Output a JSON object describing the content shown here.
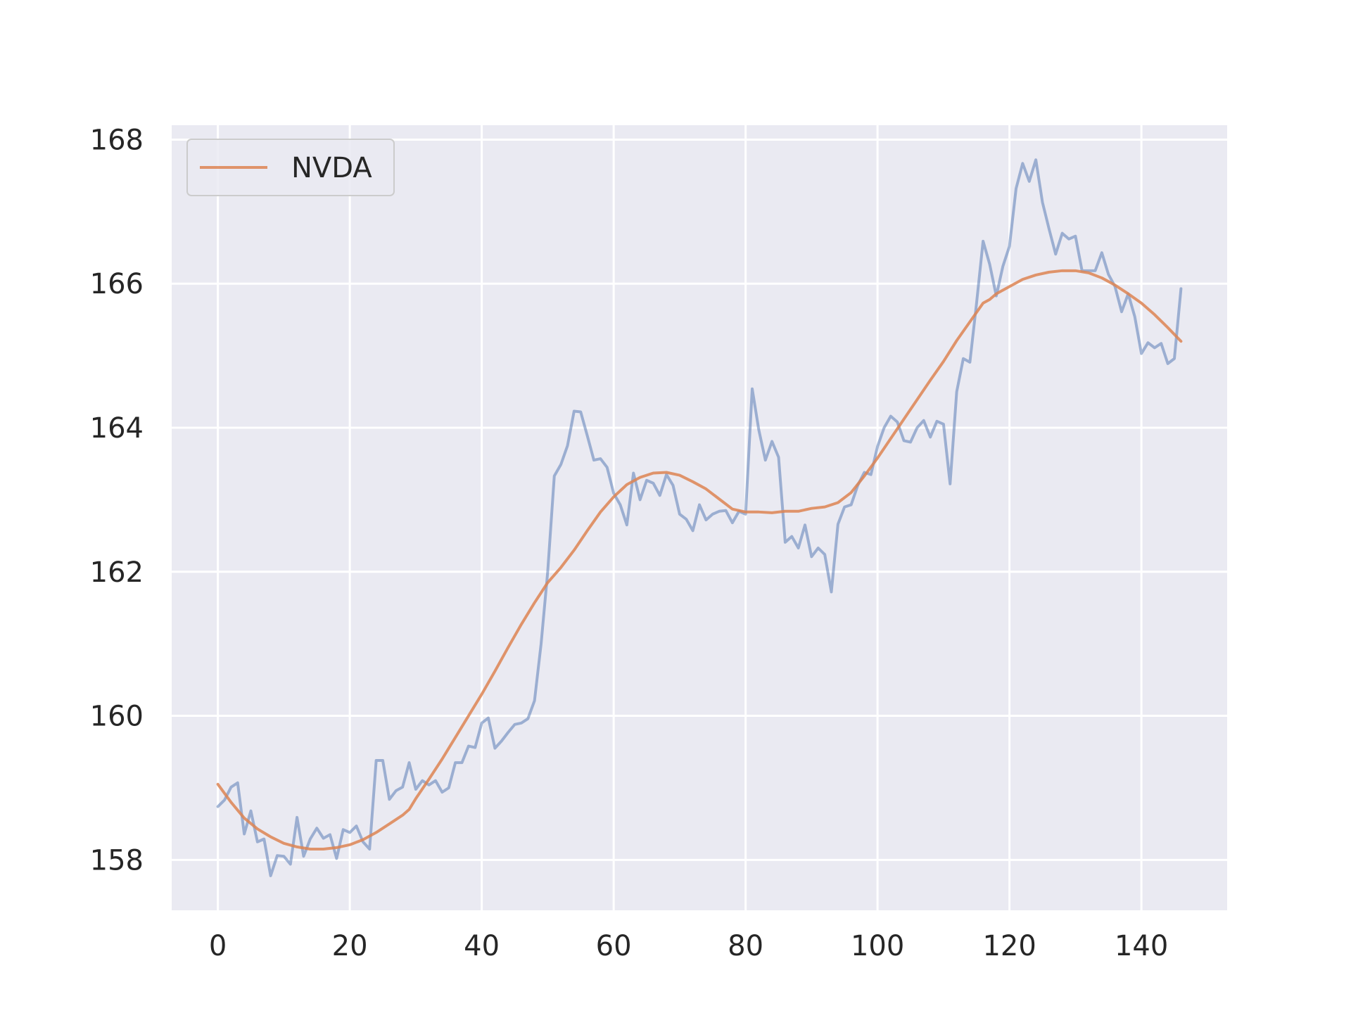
{
  "chart_data": {
    "type": "line",
    "title": "",
    "xlabel": "",
    "ylabel": "",
    "xlim": [
      -7,
      153
    ],
    "ylim": [
      157.3,
      168.2
    ],
    "xticks": [
      0,
      20,
      40,
      60,
      80,
      100,
      120,
      140
    ],
    "yticks": [
      158,
      160,
      162,
      164,
      166,
      168
    ],
    "grid": true,
    "legend_position": "top-left",
    "legend": [
      {
        "label": "NVDA",
        "color": "#dd8452"
      }
    ],
    "series": [
      {
        "name": "",
        "color": "#4c72b0",
        "opacity": 0.5,
        "x": [
          0,
          1,
          2,
          3,
          4,
          5,
          6,
          7,
          8,
          9,
          10,
          11,
          12,
          13,
          14,
          15,
          16,
          17,
          18,
          19,
          20,
          21,
          22,
          23,
          24,
          25,
          26,
          27,
          28,
          29,
          30,
          31,
          32,
          33,
          34,
          35,
          36,
          37,
          38,
          39,
          40,
          41,
          42,
          43,
          44,
          45,
          46,
          47,
          48,
          49,
          50,
          51,
          52,
          53,
          54,
          55,
          56,
          57,
          58,
          59,
          60,
          61,
          62,
          63,
          64,
          65,
          66,
          67,
          68,
          69,
          70,
          71,
          72,
          73,
          74,
          75,
          76,
          77,
          78,
          79,
          80,
          81,
          82,
          83,
          84,
          85,
          86,
          87,
          88,
          89,
          90,
          91,
          92,
          93,
          94,
          95,
          96,
          97,
          98,
          99,
          100,
          101,
          102,
          103,
          104,
          105,
          106,
          107,
          108,
          109,
          110,
          111,
          112,
          113,
          114,
          115,
          116,
          117,
          118,
          119,
          120,
          121,
          122,
          123,
          124,
          125,
          126,
          127,
          128,
          129,
          130,
          131,
          132,
          133,
          134,
          135,
          136,
          137,
          138,
          139,
          140,
          141,
          142,
          143,
          144,
          145,
          146
        ],
        "values": [
          158.74,
          158.83,
          159.01,
          159.07,
          158.36,
          158.68,
          158.25,
          158.29,
          157.78,
          158.06,
          158.05,
          157.94,
          158.59,
          158.05,
          158.29,
          158.44,
          158.3,
          158.35,
          158.02,
          158.42,
          158.38,
          158.47,
          158.25,
          158.15,
          159.38,
          159.38,
          158.84,
          158.96,
          159.01,
          159.35,
          158.98,
          159.1,
          159.04,
          159.1,
          158.94,
          159.0,
          159.35,
          159.35,
          159.58,
          159.56,
          159.9,
          159.97,
          159.55,
          159.65,
          159.77,
          159.88,
          159.9,
          159.96,
          160.21,
          161.0,
          162.0,
          163.33,
          163.49,
          163.75,
          164.23,
          164.22,
          163.89,
          163.55,
          163.57,
          163.45,
          163.09,
          162.93,
          162.65,
          163.37,
          163.0,
          163.27,
          163.23,
          163.06,
          163.35,
          163.2,
          162.8,
          162.73,
          162.57,
          162.93,
          162.72,
          162.8,
          162.84,
          162.85,
          162.68,
          162.84,
          162.8,
          164.54,
          163.97,
          163.55,
          163.81,
          163.59,
          162.41,
          162.49,
          162.33,
          162.65,
          162.21,
          162.33,
          162.24,
          161.72,
          162.66,
          162.9,
          162.93,
          163.2,
          163.38,
          163.35,
          163.74,
          164.0,
          164.16,
          164.08,
          163.82,
          163.8,
          164.0,
          164.1,
          163.87,
          164.09,
          164.05,
          163.22,
          164.5,
          164.96,
          164.91,
          165.72,
          166.59,
          166.27,
          165.83,
          166.24,
          166.52,
          167.32,
          167.67,
          167.42,
          167.72,
          167.13,
          166.76,
          166.41,
          166.7,
          166.62,
          166.66,
          166.18,
          166.18,
          166.18,
          166.43,
          166.13,
          165.96,
          165.61,
          165.86,
          165.54,
          165.03,
          165.18,
          165.11,
          165.17,
          164.89,
          164.96,
          165.93
        ]
      },
      {
        "name": "NVDA",
        "color": "#dd8452",
        "opacity": 0.85,
        "x": [
          0,
          2,
          4,
          6,
          8,
          10,
          12,
          14,
          16,
          18,
          20,
          22,
          24,
          26,
          28,
          29,
          30,
          32,
          34,
          36,
          38,
          40,
          42,
          44,
          46,
          48,
          50,
          52,
          54,
          56,
          58,
          60,
          62,
          64,
          66,
          68,
          70,
          72,
          74,
          76,
          78,
          80,
          82,
          84,
          86,
          88,
          90,
          92,
          94,
          96,
          98,
          100,
          102,
          104,
          106,
          108,
          110,
          112,
          114,
          116,
          117,
          118,
          120,
          122,
          124,
          126,
          128,
          130,
          132,
          134,
          136,
          138,
          140,
          142,
          144,
          146
        ],
        "values": [
          159.05,
          158.8,
          158.58,
          158.43,
          158.32,
          158.23,
          158.18,
          158.15,
          158.15,
          158.17,
          158.21,
          158.28,
          158.38,
          158.5,
          158.62,
          158.7,
          158.85,
          159.12,
          159.4,
          159.7,
          160.0,
          160.3,
          160.62,
          160.95,
          161.27,
          161.57,
          161.85,
          162.06,
          162.3,
          162.57,
          162.83,
          163.04,
          163.21,
          163.31,
          163.37,
          163.38,
          163.34,
          163.25,
          163.15,
          163.01,
          162.87,
          162.83,
          162.83,
          162.82,
          162.84,
          162.84,
          162.88,
          162.9,
          162.96,
          163.1,
          163.33,
          163.58,
          163.85,
          164.12,
          164.39,
          164.66,
          164.92,
          165.21,
          165.47,
          165.73,
          165.78,
          165.86,
          165.96,
          166.06,
          166.12,
          166.16,
          166.18,
          166.18,
          166.15,
          166.08,
          165.98,
          165.86,
          165.73,
          165.57,
          165.39,
          165.2
        ]
      }
    ]
  }
}
